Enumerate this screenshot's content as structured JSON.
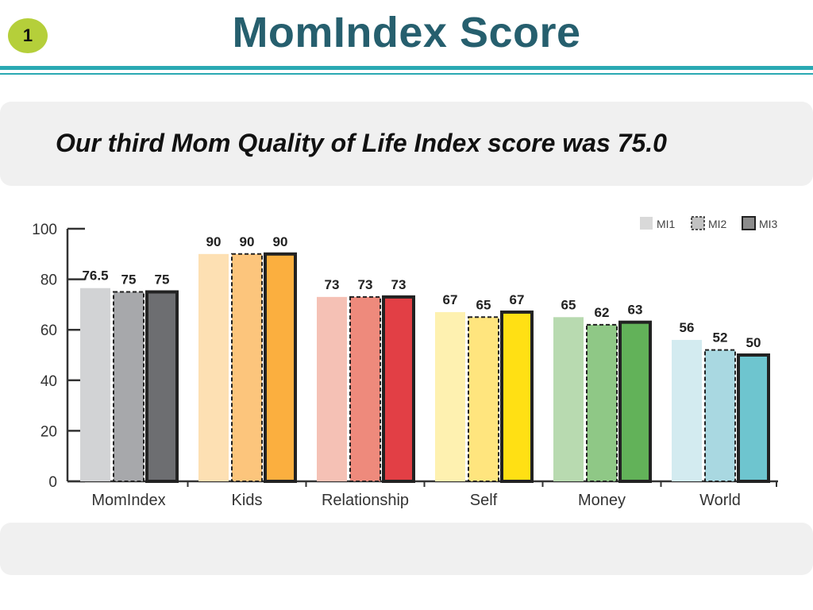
{
  "slide": {
    "number": "1",
    "title": "MomIndex Score",
    "subtitle": "Our third Mom Quality of Life Index score was 75.0"
  },
  "chart_data": {
    "type": "bar",
    "categories": [
      "MomIndex",
      "Kids",
      "Relationship",
      "Self",
      "Money",
      "World"
    ],
    "series": [
      {
        "name": "MI1",
        "values": [
          76.5,
          90,
          73,
          67,
          65,
          56
        ]
      },
      {
        "name": "MI2",
        "values": [
          75,
          90,
          73,
          65,
          62,
          52
        ]
      },
      {
        "name": "MI3",
        "values": [
          75,
          90,
          73,
          67,
          63,
          50
        ]
      }
    ],
    "value_labels": [
      [
        "76.5",
        "90",
        "73",
        "67",
        "65",
        "56"
      ],
      [
        "75",
        "90",
        "73",
        "65",
        "62",
        "52"
      ],
      [
        "75",
        "90",
        "73",
        "67",
        "63",
        "50"
      ]
    ],
    "ylim": [
      0,
      100
    ],
    "yticks": [
      0,
      20,
      40,
      60,
      80,
      100
    ],
    "legend_position": "top-right",
    "legend_swatch_colors": [
      "#d9d9d9",
      "#c2c2c2",
      "#8c8c8c"
    ],
    "category_colors": [
      [
        "#d2d3d5",
        "#a7a8ab",
        "#6d6e71"
      ],
      [
        "#fde0b3",
        "#fcc57c",
        "#fbaf3f"
      ],
      [
        "#f5c1b5",
        "#ee8a7c",
        "#e23f45"
      ],
      [
        "#fef1b0",
        "#ffe57e",
        "#ffe014"
      ],
      [
        "#b8dab0",
        "#8fc886",
        "#62b259"
      ],
      [
        "#d3ebf0",
        "#a9d8e1",
        "#6ec5cf"
      ]
    ]
  }
}
